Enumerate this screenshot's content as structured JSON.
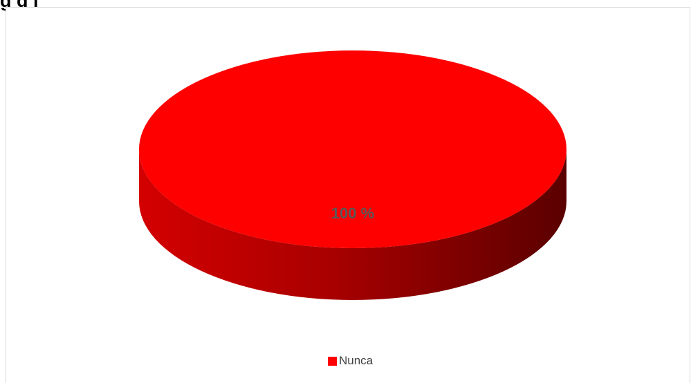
{
  "title": "g     g                                                               j",
  "chart_data": {
    "type": "pie",
    "style": "3d",
    "categories": [
      "Nunca"
    ],
    "values": [
      100
    ],
    "data_labels": [
      "100 %"
    ],
    "legend": [
      "Nunca"
    ],
    "legend_position": "bottom",
    "colors": {
      "slice": "#ff0000",
      "slice_side_light": "#d40000",
      "slice_side_dark": "#5a0000",
      "data_label": "#595959"
    }
  }
}
